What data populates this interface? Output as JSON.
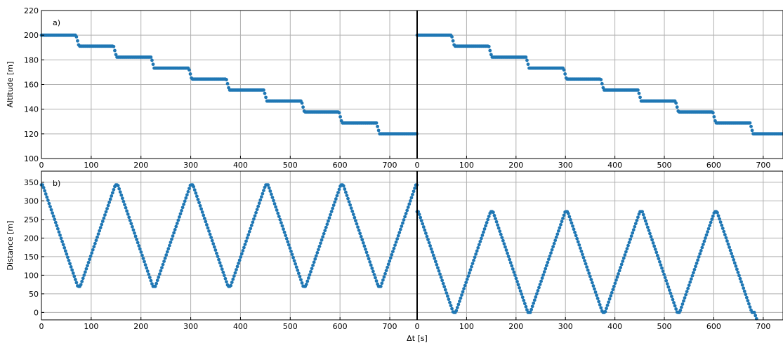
{
  "figure": {
    "xlabel": "Δt [s]",
    "point_color": "#1f77b4",
    "grid_color": "#b0b0b0"
  },
  "chart_data": [
    {
      "type": "scatter",
      "panel": "a",
      "side": "left",
      "tag": "a)",
      "ylabel": "Altitude [m]",
      "xlim": [
        0,
        755
      ],
      "ylim": [
        100,
        220
      ],
      "xticks": [
        0,
        100,
        200,
        300,
        400,
        500,
        600,
        700
      ],
      "yticks": [
        100,
        120,
        140,
        160,
        180,
        200,
        220
      ],
      "grid": true,
      "series": [
        {
          "kind": "staircase",
          "t0": 0,
          "period": 75.5,
          "start": 200,
          "step": -8.9,
          "end": 120,
          "transition_s": 6,
          "x": [
            0,
            755
          ]
        }
      ]
    },
    {
      "type": "scatter",
      "panel": "a",
      "side": "right",
      "tag": "",
      "ylabel": "",
      "xlim": [
        0,
        740
      ],
      "ylim": [
        100,
        220
      ],
      "xticks": [
        0,
        100,
        200,
        300,
        400,
        500,
        600,
        700
      ],
      "yticks": [
        100,
        120,
        140,
        160,
        180,
        200,
        220
      ],
      "grid": true,
      "series": [
        {
          "kind": "staircase",
          "t0": 0,
          "period": 75.5,
          "start": 200,
          "step": -8.9,
          "end": 120,
          "transition_s": 6,
          "x": [
            0,
            740
          ]
        }
      ]
    },
    {
      "type": "scatter",
      "panel": "b",
      "side": "left",
      "tag": "b)",
      "ylabel": "Distance [m]",
      "xlim": [
        0,
        755
      ],
      "ylim": [
        -20,
        380
      ],
      "xticks": [
        0,
        100,
        200,
        300,
        400,
        500,
        600,
        700
      ],
      "yticks": [
        0,
        50,
        100,
        150,
        200,
        250,
        300,
        350
      ],
      "grid": true,
      "series": [
        {
          "kind": "triangle",
          "max": 343,
          "min": 70,
          "peaks": [
            0,
            151,
            302,
            453,
            604,
            755
          ],
          "valleys": [
            75.5,
            226.5,
            377.5,
            528.5,
            679.5
          ],
          "flat_s": 5,
          "x": [
            0,
            755
          ]
        }
      ]
    },
    {
      "type": "scatter",
      "panel": "b",
      "side": "right",
      "tag": "",
      "ylabel": "",
      "xlim": [
        0,
        740
      ],
      "ylim": [
        -20,
        380
      ],
      "xticks": [
        0,
        100,
        200,
        300,
        400,
        500,
        600,
        700
      ],
      "yticks": [
        0,
        50,
        100,
        150,
        200,
        250,
        300,
        350
      ],
      "grid": true,
      "series": [
        {
          "kind": "triangle",
          "max": 271,
          "min": 0,
          "peaks": [
            0,
            151,
            302,
            453,
            604
          ],
          "valleys": [
            75.5,
            226.5,
            377.5,
            528.5,
            679.5
          ],
          "flat_s": 5,
          "x": [
            0,
            740
          ]
        }
      ]
    }
  ]
}
